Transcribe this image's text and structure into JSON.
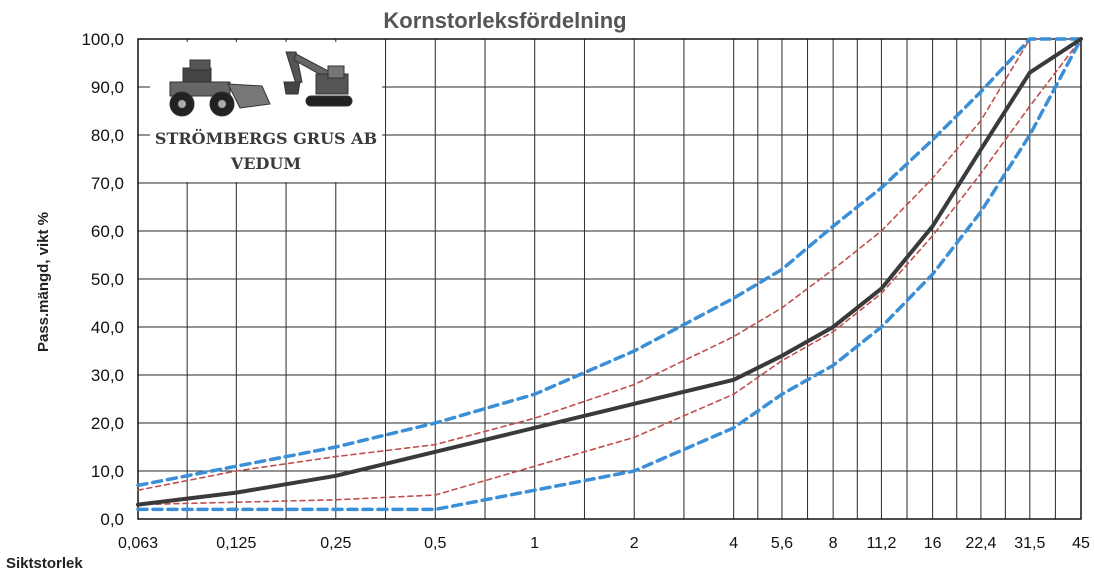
{
  "chart_data": {
    "type": "line",
    "title": "Kornstorleksfördelning",
    "xlabel": "Siktstorlek",
    "ylabel": "Pass.mängd, vikt %",
    "x_scale": "log",
    "categories": [
      "0,063",
      "0,125",
      "0,25",
      "0,5",
      "1",
      "2",
      "4",
      "5,6",
      "8",
      "11,2",
      "16",
      "22,4",
      "31,5",
      "45"
    ],
    "x": [
      0.063,
      0.125,
      0.25,
      0.5,
      1,
      2,
      4,
      5.6,
      8,
      11.2,
      16,
      22.4,
      31.5,
      45
    ],
    "ylim": [
      0,
      100
    ],
    "yticks": [
      "0,0",
      "10,0",
      "20,0",
      "30,0",
      "40,0",
      "50,0",
      "60,0",
      "70,0",
      "80,0",
      "90,0",
      "100,0"
    ],
    "grid": true,
    "series": [
      {
        "values": [
          3,
          5.5,
          9,
          14,
          19,
          24,
          29,
          34,
          40,
          48,
          61,
          77,
          93,
          100
        ],
        "color": "#3a3a3a",
        "style": "solid"
      },
      {
        "values": [
          7,
          11,
          15,
          20,
          26,
          35,
          46,
          52,
          61,
          69,
          79,
          89,
          100,
          100
        ],
        "color": "#3b8fd6",
        "style": "dashed-thick"
      },
      {
        "values": [
          2,
          2,
          2,
          2,
          6,
          10,
          19,
          26,
          32,
          40,
          51,
          64,
          80,
          100
        ],
        "color": "#3b8fd6",
        "style": "dashed-thick"
      },
      {
        "values": [
          6,
          10,
          13,
          15.5,
          21,
          28,
          38,
          44,
          52,
          60,
          71,
          83,
          100,
          100
        ],
        "color": "#c0504d",
        "style": "dashed-thin"
      },
      {
        "values": [
          3,
          3.5,
          4,
          5,
          11,
          17,
          26,
          33,
          39,
          47,
          59,
          72,
          86,
          100
        ],
        "color": "#c0504d",
        "style": "dashed-thin"
      }
    ]
  },
  "logo": {
    "line1": "STRÖMBERGS GRUS AB",
    "line2": "VEDUM"
  }
}
